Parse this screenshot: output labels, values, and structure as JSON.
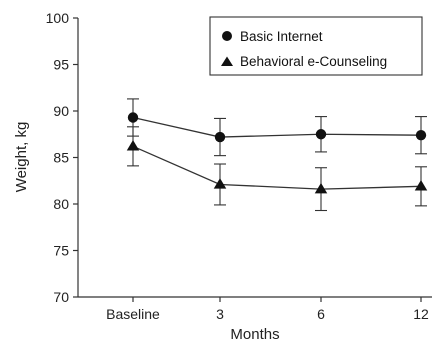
{
  "chart_data": {
    "type": "line",
    "categories": [
      "Baseline",
      "3",
      "6",
      "12"
    ],
    "xlabel": "Months",
    "ylabel": "Weight, kg",
    "ylim": [
      70,
      100
    ],
    "yticks": [
      70,
      75,
      80,
      85,
      90,
      95,
      100
    ],
    "grid": false,
    "legend_position": "top-right",
    "series": [
      {
        "name": "Basic Internet",
        "marker": "circle",
        "color": "#111111",
        "values": [
          89.3,
          87.2,
          87.5,
          87.4
        ],
        "error": [
          2.0,
          2.0,
          1.9,
          2.0
        ]
      },
      {
        "name": "Behavioral e-Counseling",
        "marker": "triangle",
        "color": "#111111",
        "values": [
          86.2,
          82.1,
          81.6,
          81.9
        ],
        "error": [
          2.1,
          2.2,
          2.3,
          2.1
        ]
      }
    ]
  }
}
